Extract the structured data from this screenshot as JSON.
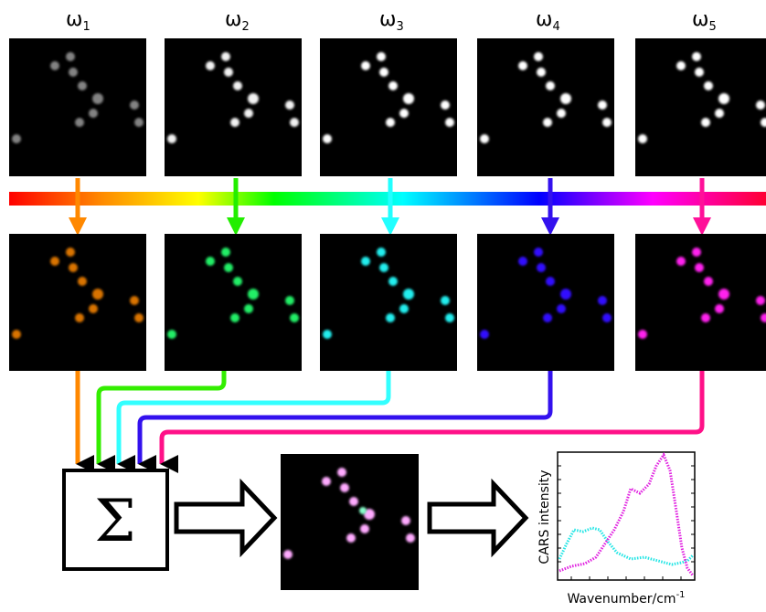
{
  "frequencies": [
    {
      "symbol": "ω",
      "index": "1"
    },
    {
      "symbol": "ω",
      "index": "2"
    },
    {
      "symbol": "ω",
      "index": "3"
    },
    {
      "symbol": "ω",
      "index": "4"
    },
    {
      "symbol": "ω",
      "index": "5"
    }
  ],
  "sum_symbol": "Σ",
  "plot": {
    "y_label": "CARS intensity",
    "x_label": "Wavenumber/cm",
    "x_label_superscript": "-1"
  }
}
